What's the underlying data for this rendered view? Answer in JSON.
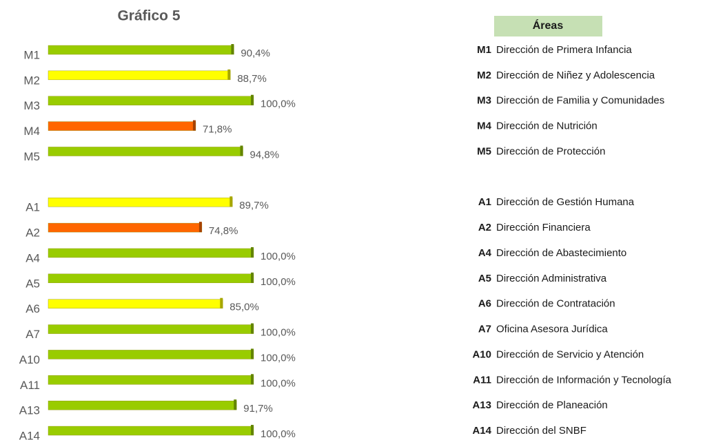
{
  "chart_data": {
    "type": "bar",
    "orientation": "horizontal",
    "title": "Gráfico 5",
    "categories": [
      "M1",
      "M2",
      "M3",
      "M4",
      "M5",
      null,
      "A1",
      "A2",
      "A4",
      "A5",
      "A6",
      "A7",
      "A10",
      "A11",
      "A13",
      "A14"
    ],
    "values": [
      90.4,
      88.7,
      100,
      71.8,
      94.8,
      null,
      89.7,
      74.8,
      100,
      100,
      85,
      100,
      100,
      100,
      91.7,
      100
    ],
    "value_labels": [
      "90,4%",
      "88,7%",
      "100,0%",
      "71,8%",
      "94,8%",
      null,
      "89,7%",
      "74,8%",
      "100,0%",
      "100,0%",
      "85,0%",
      "100,0%",
      "100,0%",
      "100,0%",
      "91,7%",
      "100,0%"
    ],
    "colors": [
      "#99cc00",
      "#ffff00",
      "#99cc00",
      "#ff6600",
      "#99cc00",
      null,
      "#ffff00",
      "#ff6600",
      "#99cc00",
      "#99cc00",
      "#ffff00",
      "#99cc00",
      "#99cc00",
      "#99cc00",
      "#99cc00",
      "#99cc00"
    ],
    "xlim": [
      0,
      100
    ],
    "legend_table": {
      "title": "Áreas",
      "items": [
        {
          "code": "M1",
          "name": "Dirección de Primera Infancia"
        },
        {
          "code": "M2",
          "name": "Dirección de Niñez y Adolescencia"
        },
        {
          "code": "M3",
          "name": "Dirección de Familia y Comunidades"
        },
        {
          "code": "M4",
          "name": "Dirección de Nutrición"
        },
        {
          "code": "M5",
          "name": "Dirección de Protección"
        },
        null,
        {
          "code": "A1",
          "name": "Dirección de Gestión Humana"
        },
        {
          "code": "A2",
          "name": "Dirección Financiera"
        },
        {
          "code": "A4",
          "name": "Dirección de Abastecimiento"
        },
        {
          "code": "A5",
          "name": "Dirección Administrativa"
        },
        {
          "code": "A6",
          "name": "Dirección de Contratación"
        },
        {
          "code": "A7",
          "name": "Oficina Asesora Jurídica"
        },
        {
          "code": "A10",
          "name": "Dirección de Servicio y Atención"
        },
        {
          "code": "A11",
          "name": "Dirección de Información y Tecnología"
        },
        {
          "code": "A13",
          "name": "Dirección de Planeación"
        },
        {
          "code": "A14",
          "name": "Dirección del SNBF"
        }
      ]
    }
  }
}
